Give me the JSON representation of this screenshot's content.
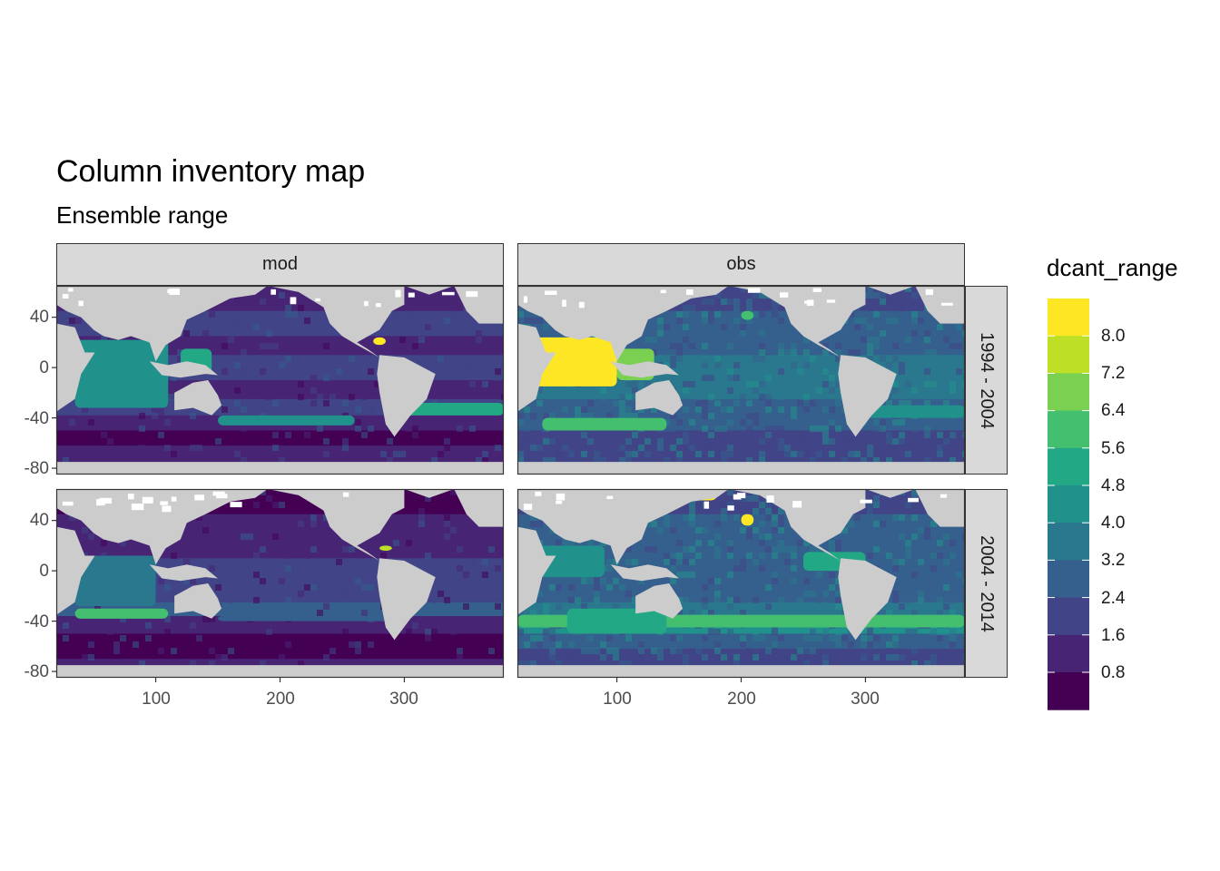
{
  "title": "Column inventory map",
  "subtitle": "Ensemble range",
  "facets": {
    "columns": [
      "mod",
      "obs"
    ],
    "rows": [
      "1994 - 2004",
      "2004 - 2014"
    ]
  },
  "axes": {
    "x_ticks": [
      "100",
      "200",
      "300"
    ],
    "y_ticks": [
      "40",
      "0",
      "-40",
      "-80"
    ]
  },
  "legend": {
    "title": "dcant_range",
    "labels": [
      "8.0",
      "7.2",
      "6.4",
      "5.6",
      "4.8",
      "4.0",
      "3.2",
      "2.4",
      "1.6",
      "0.8"
    ],
    "colors": [
      "#fde725",
      "#bddf26",
      "#7ad151",
      "#44bf70",
      "#22a884",
      "#21918c",
      "#2a788e",
      "#355f8d",
      "#414487",
      "#482475",
      "#440154"
    ]
  },
  "chart_data": {
    "type": "heatmap",
    "title": "Column inventory map",
    "subtitle": "Ensemble range",
    "xlim": [
      20,
      380
    ],
    "ylim": [
      -85,
      65
    ],
    "x_breaks": [
      100,
      200,
      300
    ],
    "y_breaks": [
      40,
      0,
      -40,
      -80
    ],
    "fill": "dcant_range",
    "fill_breaks": [
      0.8,
      1.6,
      2.4,
      3.2,
      4.0,
      4.8,
      5.6,
      6.4,
      7.2,
      8.0
    ],
    "land_color": "#cccccc",
    "panels": [
      {
        "column": "mod",
        "row": "1994 - 2004"
      },
      {
        "column": "obs",
        "row": "1994 - 2004"
      },
      {
        "column": "mod",
        "row": "2004 - 2014"
      },
      {
        "column": "obs",
        "row": "2004 - 2014"
      }
    ]
  }
}
